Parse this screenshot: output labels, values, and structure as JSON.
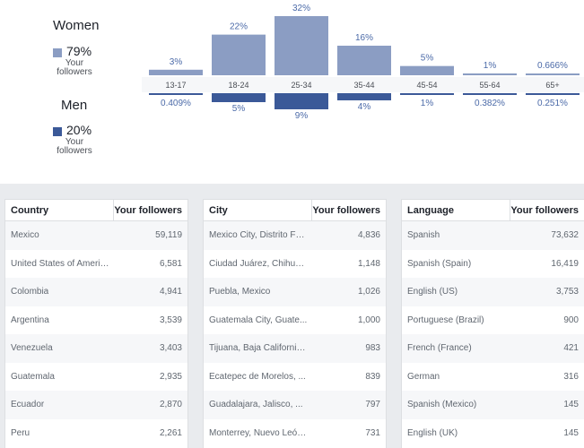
{
  "legend": {
    "women": {
      "title": "Women",
      "percent": "79%",
      "sub1": "Your",
      "sub2": "followers",
      "color": "#8b9dc3"
    },
    "men": {
      "title": "Men",
      "percent": "20%",
      "sub1": "Your",
      "sub2": "followers",
      "color": "#3b5998"
    }
  },
  "chart_data": {
    "type": "bar",
    "categories": [
      "13-17",
      "18-24",
      "25-34",
      "35-44",
      "45-54",
      "55-64",
      "65+"
    ],
    "series": [
      {
        "name": "Women",
        "values": [
          3,
          22,
          32,
          16,
          5,
          1,
          0.666
        ],
        "labels": [
          "3%",
          "22%",
          "32%",
          "16%",
          "5%",
          "1%",
          "0.666%"
        ],
        "color": "#8b9dc3"
      },
      {
        "name": "Men",
        "values": [
          0.409,
          5,
          9,
          4,
          1,
          0.382,
          0.251
        ],
        "labels": [
          "0.409%",
          "5%",
          "9%",
          "4%",
          "1%",
          "0.382%",
          "0.251%"
        ],
        "color": "#3b5998"
      }
    ]
  },
  "tables": [
    {
      "headers": [
        "Country",
        "Your followers"
      ],
      "rows": [
        [
          "Mexico",
          "59,119"
        ],
        [
          "United States of America",
          "6,581"
        ],
        [
          "Colombia",
          "4,941"
        ],
        [
          "Argentina",
          "3,539"
        ],
        [
          "Venezuela",
          "3,403"
        ],
        [
          "Guatemala",
          "2,935"
        ],
        [
          "Ecuador",
          "2,870"
        ],
        [
          "Peru",
          "2,261"
        ]
      ]
    },
    {
      "headers": [
        "City",
        "Your followers"
      ],
      "rows": [
        [
          "Mexico City, Distrito Fe...",
          "4,836"
        ],
        [
          "Ciudad Juárez, Chihua...",
          "1,148"
        ],
        [
          "Puebla, Mexico",
          "1,026"
        ],
        [
          "Guatemala City, Guate...",
          "1,000"
        ],
        [
          "Tijuana, Baja California...",
          "983"
        ],
        [
          "Ecatepec de Morelos, ...",
          "839"
        ],
        [
          "Guadalajara, Jalisco, ...",
          "797"
        ],
        [
          "Monterrey, Nuevo León...",
          "731"
        ]
      ]
    },
    {
      "headers": [
        "Language",
        "Your followers"
      ],
      "rows": [
        [
          "Spanish",
          "73,632"
        ],
        [
          "Spanish (Spain)",
          "16,419"
        ],
        [
          "English (US)",
          "3,753"
        ],
        [
          "Portuguese (Brazil)",
          "900"
        ],
        [
          "French (France)",
          "421"
        ],
        [
          "German",
          "316"
        ],
        [
          "Spanish (Mexico)",
          "145"
        ],
        [
          "English (UK)",
          "145"
        ]
      ]
    }
  ]
}
